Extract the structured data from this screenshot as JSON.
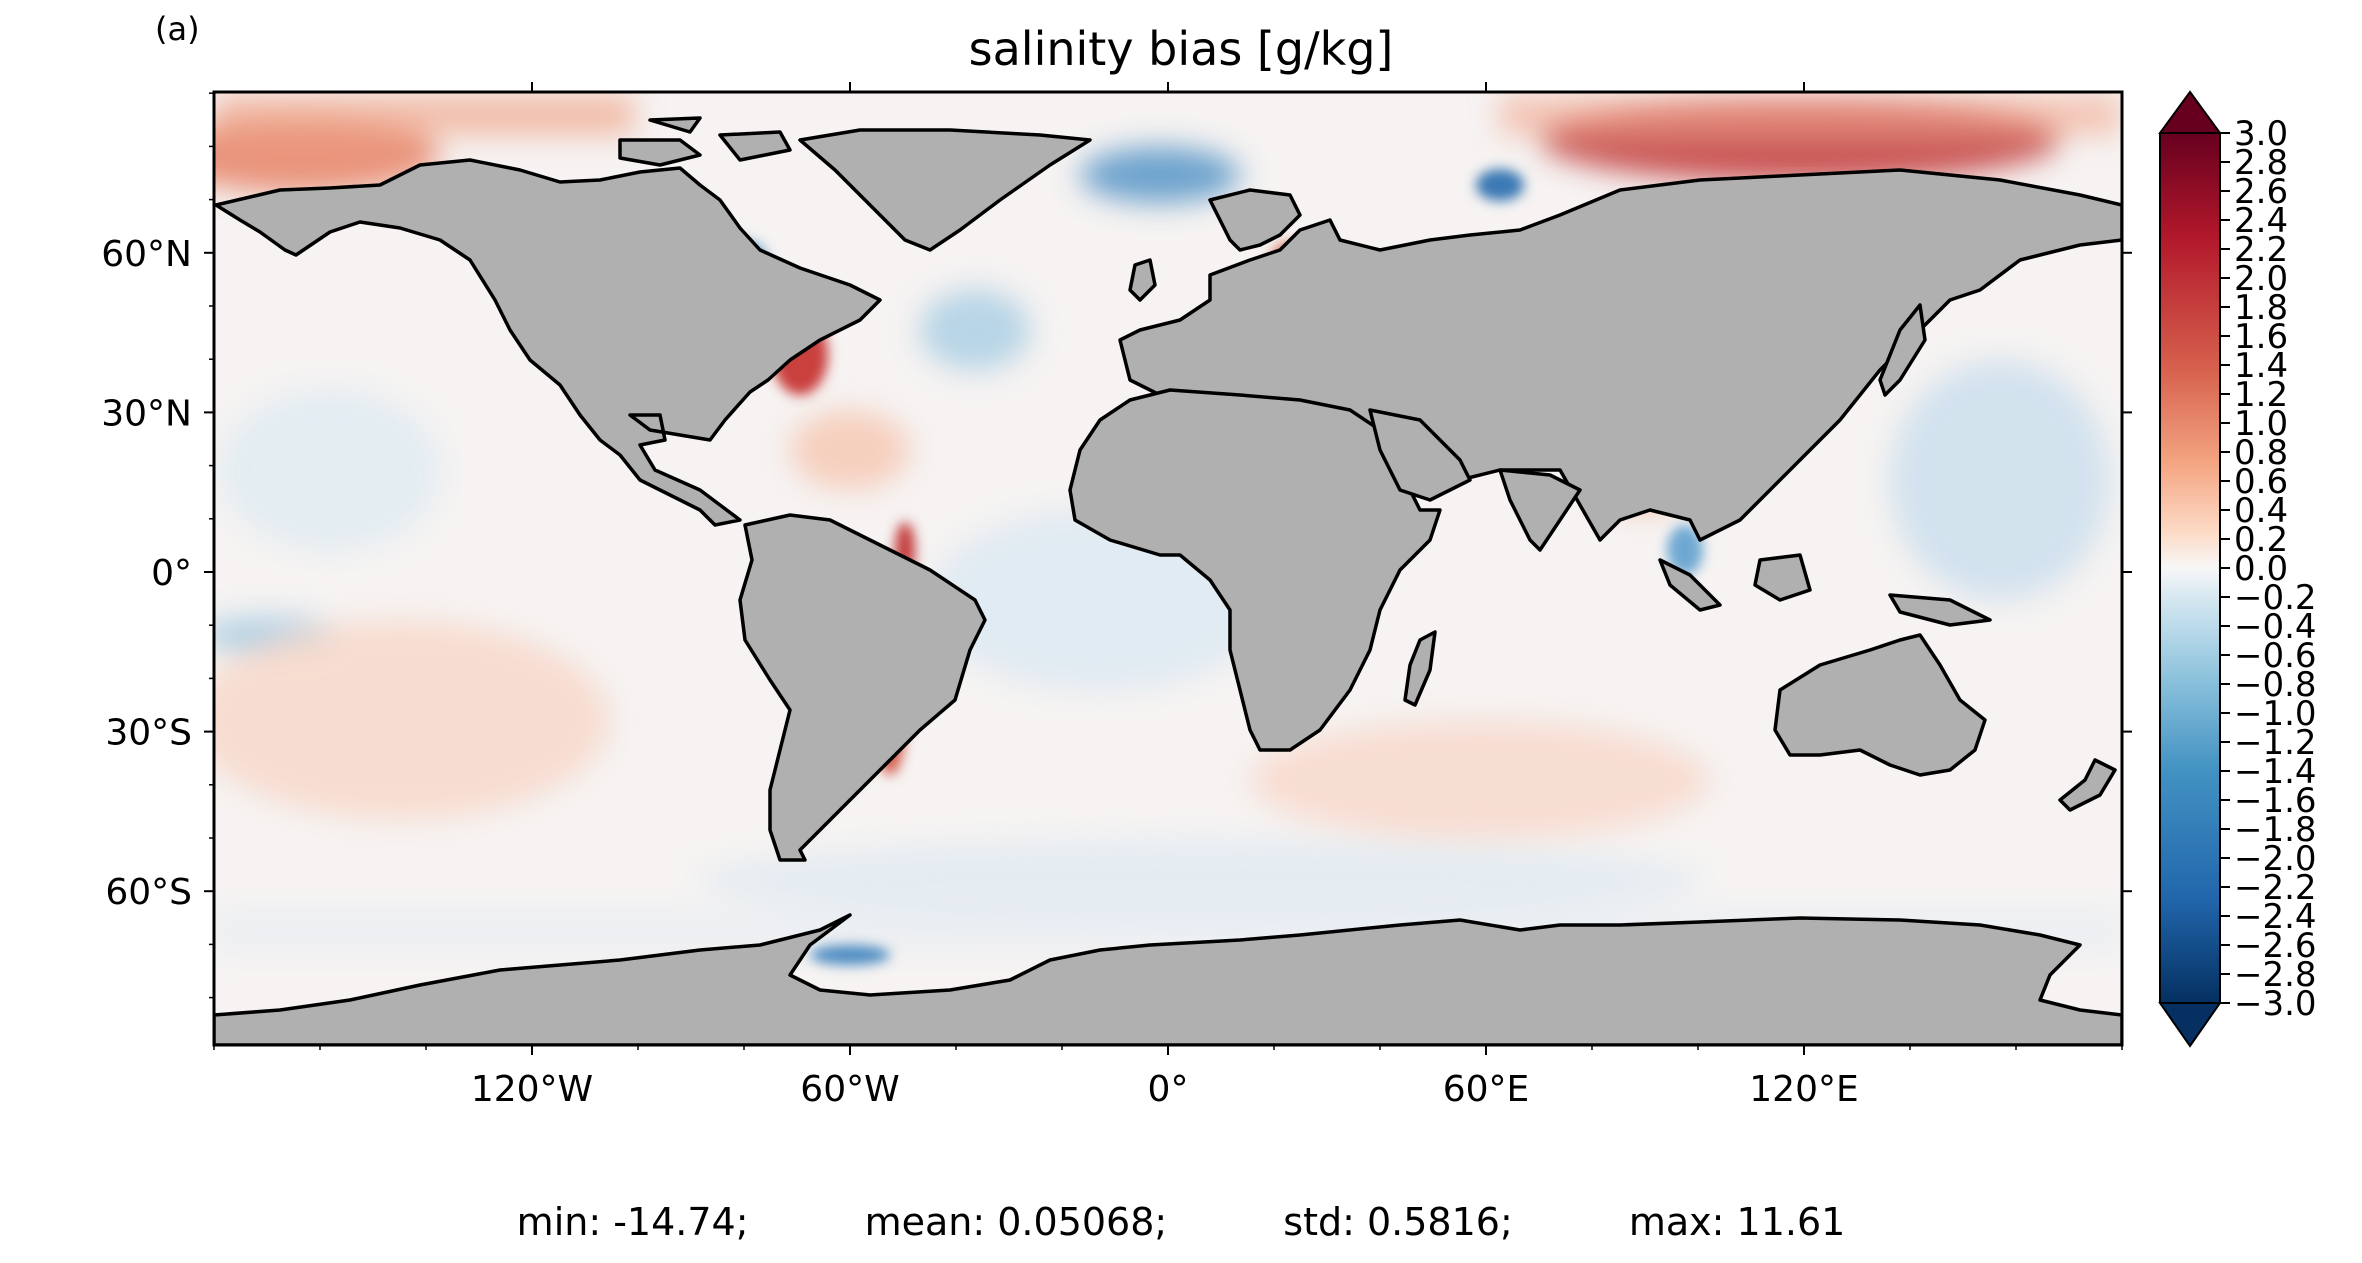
{
  "panel_label": "(a)",
  "title": "salinity bias [g/kg]",
  "lat_ticks": [
    {
      "value": 60,
      "label": "60°N"
    },
    {
      "value": 30,
      "label": "30°N"
    },
    {
      "value": 0,
      "label": "0°"
    },
    {
      "value": -30,
      "label": "30°S"
    },
    {
      "value": -60,
      "label": "60°S"
    }
  ],
  "lon_ticks": [
    {
      "value": -120,
      "label": "120°W"
    },
    {
      "value": -60,
      "label": "60°W"
    },
    {
      "value": 0,
      "label": "0°"
    },
    {
      "value": 60,
      "label": "60°E"
    },
    {
      "value": 120,
      "label": "120°E"
    }
  ],
  "colorbar": {
    "min": -3.0,
    "max": 3.0,
    "extend": "both",
    "colormap": "RdBu_r",
    "tick_labels": [
      "3.0",
      "2.8",
      "2.6",
      "2.4",
      "2.2",
      "2.0",
      "1.8",
      "1.6",
      "1.4",
      "1.2",
      "1.0",
      "0.8",
      "0.6",
      "0.4",
      "0.2",
      "0.0",
      "−0.2",
      "−0.4",
      "−0.6",
      "−0.8",
      "−1.0",
      "−1.2",
      "−1.4",
      "−1.6",
      "−1.8",
      "−2.0",
      "−2.2",
      "−2.4",
      "−2.6",
      "−2.8",
      "−3.0"
    ]
  },
  "colors": {
    "land": "#b0b0b0",
    "coast": "#000000",
    "dark_red": "#67001f",
    "red": "#d6604d",
    "light_red": "#f4a582",
    "white": "#f7f7f7",
    "light_blue": "#92c5de",
    "blue": "#4393c3",
    "dark_blue": "#053061"
  },
  "stats": {
    "min": "min: -14.74;",
    "mean": "mean: 0.05068;",
    "std": "std: 0.5816;",
    "max": "max: 11.61"
  }
}
